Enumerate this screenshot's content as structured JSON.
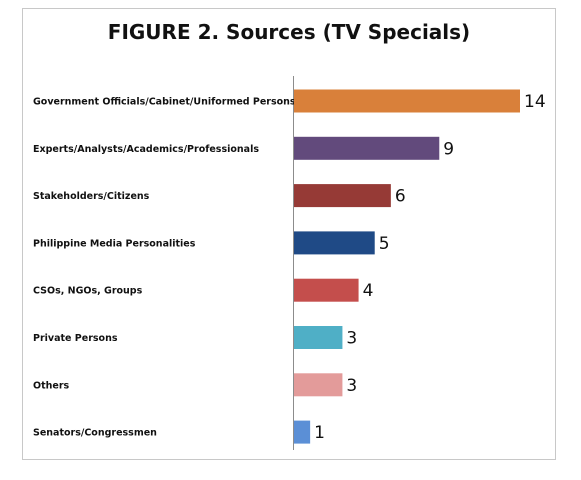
{
  "chart_data": {
    "type": "bar",
    "orientation": "horizontal",
    "title": "FIGURE 2. Sources (TV Specials)",
    "categories": [
      "Government Officials/Cabinet/Uniformed Persons",
      "Experts/Analysts/Academics/Professionals",
      "Stakeholders/Citizens",
      "Philippine Media Personalities",
      "CSOs, NGOs, Groups",
      "Private Persons",
      "Others",
      "Senators/Congressmen"
    ],
    "values": [
      14,
      9,
      6,
      5,
      4,
      3,
      3,
      1
    ],
    "colors": [
      "#D9803A",
      "#624A7C",
      "#963A36",
      "#1F4A86",
      "#C44E4C",
      "#4FAFC6",
      "#E39B9A",
      "#5B8FD6"
    ],
    "xlim": [
      0,
      14
    ],
    "grid": false,
    "legend": "none",
    "xlabel": "",
    "ylabel": ""
  }
}
